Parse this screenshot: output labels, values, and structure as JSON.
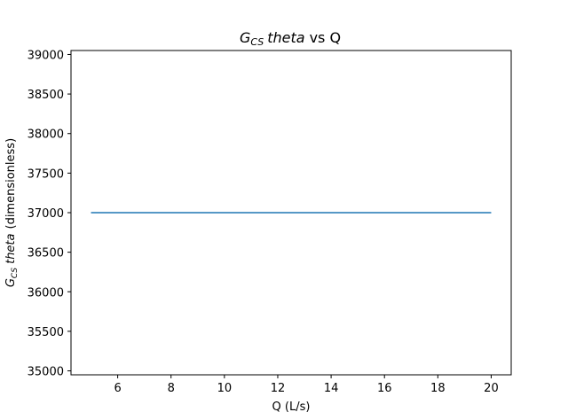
{
  "chart_data": {
    "type": "line",
    "title": {
      "main": "G",
      "sub": "CS",
      "italic": "theta",
      "suffix": "vs Q"
    },
    "xlabel": "Q (L/s)",
    "ylabel": {
      "main": "G",
      "sub": "CS",
      "italic": "theta",
      "suffix": "(dimensionless)"
    },
    "xlim": [
      4.25,
      20.75
    ],
    "ylim": [
      34950,
      39050
    ],
    "xticks": [
      6,
      8,
      10,
      12,
      14,
      16,
      18,
      20
    ],
    "yticks": [
      35000,
      35500,
      36000,
      36500,
      37000,
      37500,
      38000,
      38500,
      39000
    ],
    "series": [
      {
        "x": [
          5,
          20
        ],
        "y": [
          37000,
          37000
        ],
        "color": "#1f77b4"
      }
    ],
    "grid": false,
    "legend": "none"
  }
}
